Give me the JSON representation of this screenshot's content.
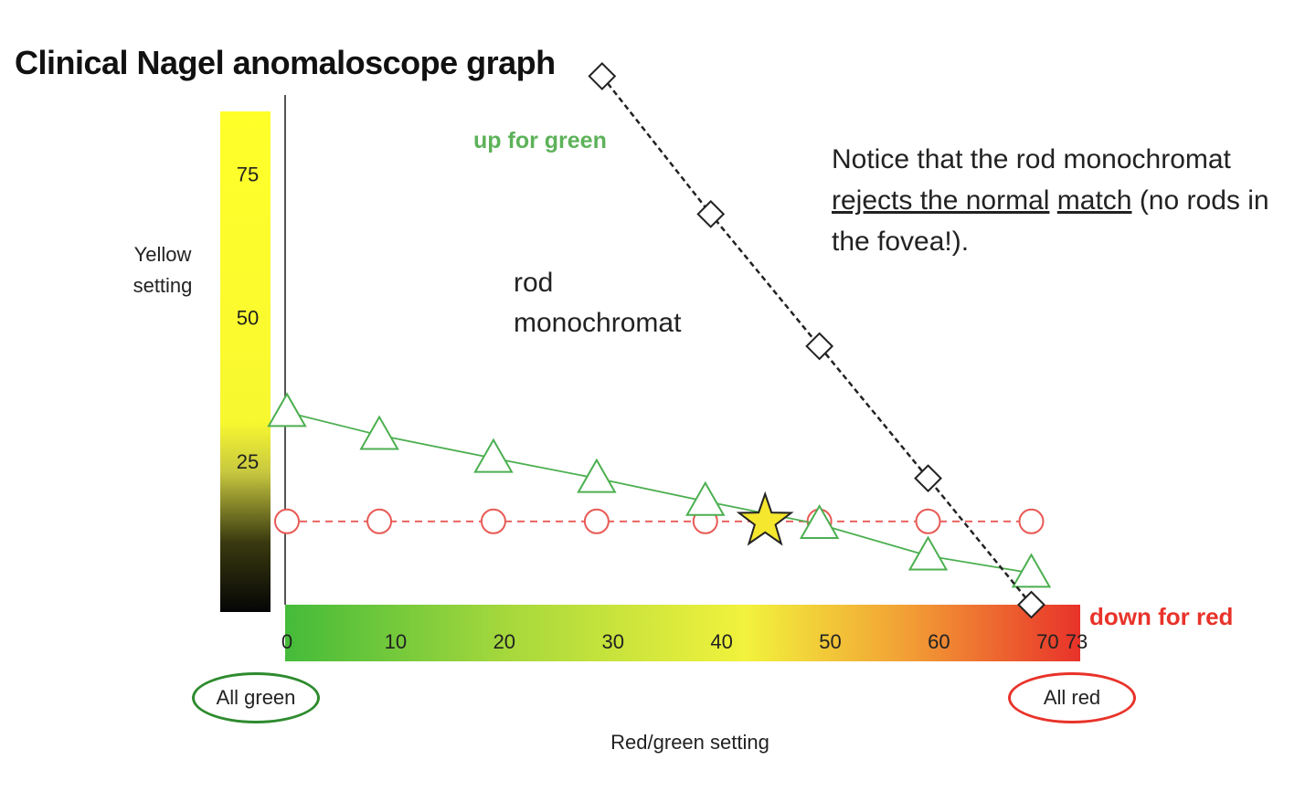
{
  "title": "Clinical Nagel anomaloscope graph",
  "axes": {
    "ylabel_line1": "Yellow",
    "ylabel_line2": "setting",
    "xlabel": "Red/green setting"
  },
  "annotations": {
    "up_for_green": "up for green",
    "down_for_red": "down for red",
    "rod_line1": "rod",
    "rod_line2": "monochromat",
    "note_part1": "Notice that the rod monochromat ",
    "note_underlined1": "rejects the normal",
    "note_underlined2": "match",
    "note_part2": " (no rods in the fovea!)."
  },
  "endpoints": {
    "all_green": "All green",
    "all_red": "All red"
  },
  "colors": {
    "green_series": "#4caf50",
    "red_series": "#e85a55",
    "rod_series": "#222222",
    "star": "#f5e62e",
    "yellow_bar_top": "#ffff2a",
    "rg_bar_left": "#44bb3a",
    "rg_bar_mid": "#f2f23c",
    "rg_bar_right": "#e8322a"
  },
  "chart_data": {
    "type": "line",
    "title": "Clinical Nagel anomaloscope graph",
    "xlabel": "Red/green setting",
    "ylabel": "Yellow setting",
    "xlim": [
      0,
      73
    ],
    "ylim": [
      0,
      90
    ],
    "x_ticks": [
      0,
      10,
      20,
      30,
      40,
      50,
      60,
      70,
      73
    ],
    "y_ticks": [
      25,
      50,
      75
    ],
    "grid": false,
    "series": [
      {
        "marker": "triangle",
        "color": "#4caf50",
        "line_style": "solid",
        "x": [
          0,
          8.5,
          19,
          28.5,
          38.5,
          49,
          59,
          68.5
        ],
        "y": [
          33.5,
          29.5,
          25.5,
          22,
          18,
          14,
          8.5,
          5.5
        ]
      },
      {
        "marker": "circle",
        "color": "#e85a55",
        "line_style": "dashed",
        "x": [
          0,
          8.5,
          19,
          28.5,
          38.5,
          49,
          59,
          68.5
        ],
        "y": [
          14.5,
          14.5,
          14.5,
          14.5,
          14.5,
          14.5,
          14.5,
          14.5
        ]
      },
      {
        "marker": "diamond",
        "color": "#222222",
        "line_style": "dashed",
        "x": [
          29,
          39,
          49,
          59,
          68.5
        ],
        "y": [
          92,
          68,
          45,
          22,
          0
        ]
      }
    ],
    "normal_match_star": {
      "x": 44,
      "y": 14.5
    }
  }
}
